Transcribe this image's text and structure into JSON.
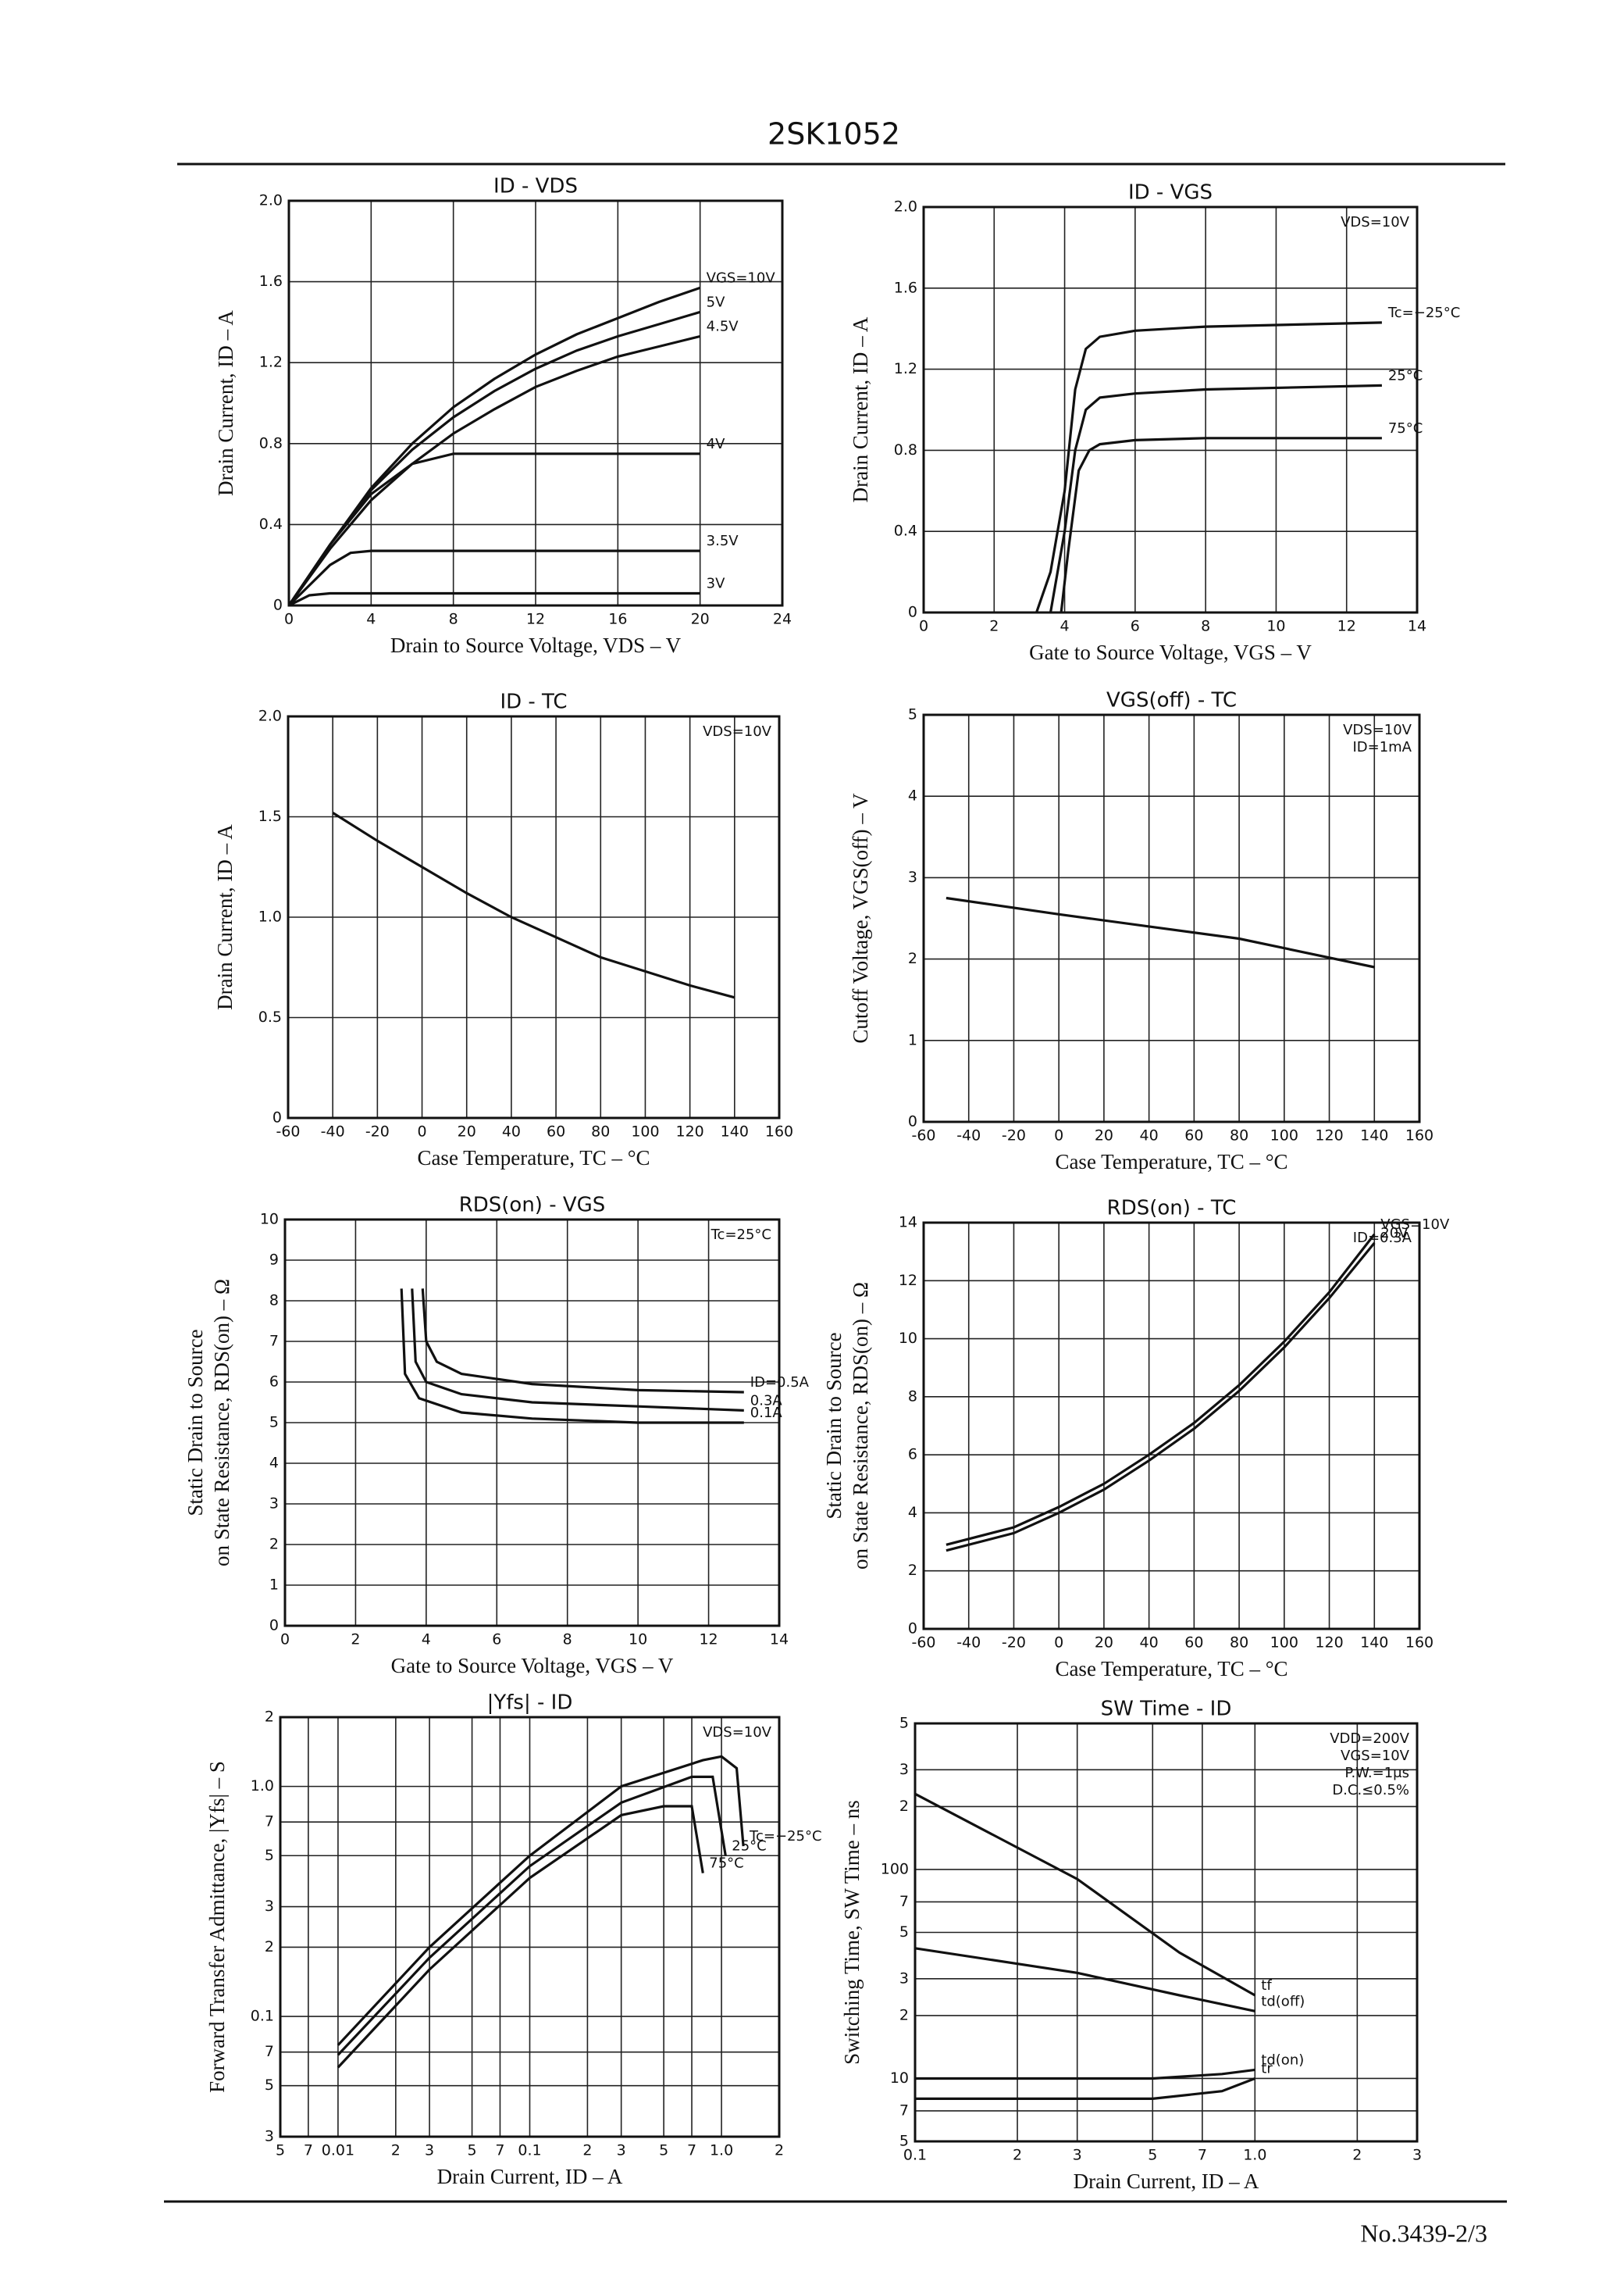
{
  "page": {
    "part_number": "2SK1052",
    "doc_number": "No.3439-2/3"
  },
  "chart_data": [
    {
      "type": "line",
      "title": "ID - VDS",
      "xlabel": "Drain to Source Voltage, VDS – V",
      "ylabel": "Drain Current, ID – A",
      "xlim": [
        0,
        24
      ],
      "xticks": [
        0,
        4,
        8,
        12,
        16,
        20,
        24
      ],
      "ylim": [
        0,
        2
      ],
      "yticks": [
        0,
        0.4,
        0.8,
        1.2,
        1.6,
        {
          "value": 2,
          "label": "2.0"
        }
      ],
      "grid": true,
      "series": [
        {
          "name": "VGS=10V",
          "color": "#111",
          "x": [
            0,
            2,
            4,
            6,
            8,
            10,
            12,
            14,
            16,
            18,
            20
          ],
          "values": [
            0,
            0.3,
            0.58,
            0.8,
            0.98,
            1.12,
            1.24,
            1.34,
            1.42,
            1.5,
            1.57
          ]
        },
        {
          "name": "5V",
          "color": "#111",
          "x": [
            0,
            2,
            4,
            6,
            8,
            10,
            12,
            14,
            16,
            18,
            20
          ],
          "values": [
            0,
            0.3,
            0.57,
            0.77,
            0.93,
            1.06,
            1.17,
            1.26,
            1.33,
            1.39,
            1.45
          ]
        },
        {
          "name": "4.5V",
          "color": "#111",
          "x": [
            0,
            2,
            4,
            6,
            8,
            10,
            12,
            14,
            16,
            18,
            20
          ],
          "values": [
            0,
            0.28,
            0.52,
            0.7,
            0.85,
            0.97,
            1.08,
            1.16,
            1.23,
            1.28,
            1.33
          ]
        },
        {
          "name": "4V",
          "color": "#111",
          "x": [
            0,
            2,
            4,
            6,
            8,
            20
          ],
          "values": [
            0,
            0.3,
            0.55,
            0.7,
            0.75,
            0.75
          ]
        },
        {
          "name": "3.5V",
          "color": "#111",
          "x": [
            0,
            2,
            3,
            4,
            20
          ],
          "values": [
            0,
            0.2,
            0.26,
            0.27,
            0.27
          ]
        },
        {
          "name": "3V",
          "color": "#111",
          "x": [
            0,
            1,
            2,
            20
          ],
          "values": [
            0,
            0.05,
            0.06,
            0.06
          ]
        }
      ]
    },
    {
      "type": "line",
      "title": "ID - VGS",
      "xlabel": "Gate to Source Voltage, VGS – V",
      "ylabel": "Drain Current, ID – A",
      "annotations": [
        "VDS=10V"
      ],
      "xlim": [
        0,
        14
      ],
      "xticks": [
        0,
        2,
        4,
        6,
        8,
        10,
        12,
        14
      ],
      "ylim": [
        0,
        2
      ],
      "yticks": [
        0,
        0.4,
        0.8,
        1.2,
        1.6,
        {
          "value": 2,
          "label": "2.0"
        }
      ],
      "grid": true,
      "series": [
        {
          "name": "Tc=−25°C",
          "color": "#111",
          "x": [
            3.2,
            3.6,
            4,
            4.3,
            4.6,
            5,
            6,
            8,
            13
          ],
          "values": [
            0,
            0.2,
            0.6,
            1.1,
            1.3,
            1.36,
            1.39,
            1.41,
            1.43
          ]
        },
        {
          "name": "25°C",
          "color": "#111",
          "x": [
            3.6,
            4,
            4.3,
            4.6,
            5,
            6,
            8,
            13
          ],
          "values": [
            0,
            0.4,
            0.8,
            1.0,
            1.06,
            1.08,
            1.1,
            1.12
          ]
        },
        {
          "name": "75°C",
          "color": "#111",
          "x": [
            3.9,
            4.1,
            4.4,
            4.7,
            5,
            6,
            8,
            13
          ],
          "values": [
            0,
            0.3,
            0.7,
            0.8,
            0.83,
            0.85,
            0.86,
            0.86
          ]
        }
      ]
    },
    {
      "type": "line",
      "title": "ID - TC",
      "xlabel": "Case Temperature, TC – °C",
      "ylabel": "Drain Current, ID – A",
      "annotations": [
        "VDS=10V"
      ],
      "xlim": [
        -60,
        160
      ],
      "xticks": [
        -60,
        -40,
        -20,
        0,
        20,
        40,
        60,
        80,
        100,
        120,
        140,
        160
      ],
      "ylim": [
        0,
        2
      ],
      "yticks": [
        0,
        0.5,
        {
          "value": 1,
          "label": "1.0"
        },
        1.5,
        {
          "value": 2,
          "label": "2.0"
        }
      ],
      "grid": true,
      "color": "#111",
      "x": [
        -40,
        -20,
        0,
        20,
        40,
        60,
        80,
        100,
        120,
        140
      ],
      "values": [
        1.52,
        1.38,
        1.25,
        1.12,
        1.0,
        0.9,
        0.8,
        0.73,
        0.66,
        0.6
      ]
    },
    {
      "type": "line",
      "title": "VGS(off) - TC",
      "xlabel": "Case Temperature, TC – °C",
      "ylabel": "Cutoff Voltage, VGS(off) – V",
      "annotations": [
        "VDS=10V",
        "ID=1mA"
      ],
      "xlim": [
        -60,
        160
      ],
      "xticks": [
        -60,
        -40,
        -20,
        0,
        20,
        40,
        60,
        80,
        100,
        120,
        140,
        160
      ],
      "ylim": [
        0,
        5
      ],
      "yticks": [
        0,
        1,
        2,
        3,
        4,
        5
      ],
      "grid": true,
      "color": "#111",
      "x": [
        -50,
        0,
        40,
        80,
        140
      ],
      "values": [
        2.75,
        2.55,
        2.4,
        2.25,
        1.9
      ]
    },
    {
      "type": "line",
      "title": "RDS(on) - VGS",
      "xlabel": "Gate to Source Voltage, VGS – V",
      "ylabel": [
        "Static Drain to Source",
        "on State Resistance, RDS(on) – Ω"
      ],
      "annotations": [
        "Tc=25°C"
      ],
      "xlim": [
        0,
        14
      ],
      "xticks": [
        0,
        2,
        4,
        6,
        8,
        10,
        12,
        14
      ],
      "ylim": [
        0,
        10
      ],
      "yticks": [
        0,
        1,
        2,
        3,
        4,
        5,
        6,
        7,
        8,
        9,
        10
      ],
      "grid": true,
      "series": [
        {
          "name": "ID=0.5A",
          "color": "#111",
          "x": [
            3.9,
            4.0,
            4.3,
            5,
            7,
            10,
            13
          ],
          "values": [
            8.3,
            7.0,
            6.5,
            6.2,
            5.95,
            5.8,
            5.75
          ]
        },
        {
          "name": "0.3A",
          "color": "#111",
          "x": [
            3.6,
            3.7,
            4,
            5,
            7,
            10,
            13
          ],
          "values": [
            8.3,
            6.5,
            6.0,
            5.7,
            5.5,
            5.4,
            5.3
          ]
        },
        {
          "name": "0.1A",
          "color": "#111",
          "x": [
            3.3,
            3.4,
            3.8,
            5,
            7,
            10,
            13
          ],
          "values": [
            8.3,
            6.2,
            5.6,
            5.25,
            5.1,
            5.0,
            5.0
          ]
        }
      ]
    },
    {
      "type": "line",
      "title": "RDS(on) - TC",
      "xlabel": "Case Temperature, TC – °C",
      "ylabel": [
        "Static Drain to Source",
        "on State Resistance, RDS(on) – Ω"
      ],
      "annotations": [
        "ID=0.3A"
      ],
      "xlim": [
        -60,
        160
      ],
      "xticks": [
        -60,
        -40,
        -20,
        0,
        20,
        40,
        60,
        80,
        100,
        120,
        140,
        160
      ],
      "ylim": [
        0,
        14
      ],
      "yticks": [
        0,
        2,
        4,
        6,
        8,
        10,
        12,
        14
      ],
      "grid": true,
      "series": [
        {
          "name": "VGS=10V",
          "color": "#111",
          "x": [
            -50,
            -20,
            0,
            20,
            40,
            60,
            80,
            100,
            120,
            140
          ],
          "values": [
            2.9,
            3.5,
            4.2,
            5.0,
            6.0,
            7.1,
            8.4,
            9.9,
            11.6,
            13.6
          ]
        },
        {
          "name": "20V",
          "color": "#111",
          "x": [
            -50,
            -20,
            0,
            20,
            40,
            60,
            80,
            100,
            120,
            140
          ],
          "values": [
            2.7,
            3.3,
            4.0,
            4.8,
            5.8,
            6.9,
            8.2,
            9.7,
            11.4,
            13.3
          ]
        }
      ]
    },
    {
      "type": "line",
      "title": "|Yfs| - ID",
      "xlabel": "Drain Current, ID – A",
      "ylabel": "Forward Transfer Admittance, |Yfs| – S",
      "annotations": [
        "VDS=10V"
      ],
      "xscale": "log",
      "yscale": "log",
      "xlim": [
        0.005,
        2
      ],
      "xticks": [
        {
          "value": 0.005,
          "label": "5"
        },
        {
          "value": 0.007,
          "label": "7"
        },
        0.01,
        {
          "value": 0.02,
          "label": "2"
        },
        {
          "value": 0.03,
          "label": "3"
        },
        {
          "value": 0.05,
          "label": "5"
        },
        {
          "value": 0.07,
          "label": "7"
        },
        0.1,
        {
          "value": 0.2,
          "label": "2"
        },
        {
          "value": 0.3,
          "label": "3"
        },
        {
          "value": 0.5,
          "label": "5"
        },
        {
          "value": 0.7,
          "label": "7"
        },
        {
          "value": 1,
          "label": "1.0"
        },
        2
      ],
      "ylim": [
        0.03,
        2
      ],
      "yticks": [
        {
          "value": 0.03,
          "label": "3"
        },
        {
          "value": 0.05,
          "label": "5"
        },
        {
          "value": 0.07,
          "label": "7"
        },
        0.1,
        {
          "value": 0.2,
          "label": "2"
        },
        {
          "value": 0.3,
          "label": "3"
        },
        {
          "value": 0.5,
          "label": "5"
        },
        {
          "value": 0.7,
          "label": "7"
        },
        {
          "value": 1,
          "label": "1.0"
        },
        2
      ],
      "grid": true,
      "series": [
        {
          "name": "Tc=−25°C",
          "color": "#111",
          "x": [
            0.01,
            0.03,
            0.1,
            0.3,
            0.8,
            1.0,
            1.2,
            1.3
          ],
          "values": [
            0.075,
            0.2,
            0.5,
            1.0,
            1.3,
            1.35,
            1.2,
            0.55
          ]
        },
        {
          "name": "25°C",
          "color": "#111",
          "x": [
            0.01,
            0.03,
            0.1,
            0.3,
            0.7,
            0.9,
            1.05
          ],
          "values": [
            0.068,
            0.18,
            0.45,
            0.85,
            1.1,
            1.1,
            0.5
          ]
        },
        {
          "name": "75°C",
          "color": "#111",
          "x": [
            0.01,
            0.03,
            0.1,
            0.3,
            0.5,
            0.7,
            0.8
          ],
          "values": [
            0.06,
            0.16,
            0.4,
            0.75,
            0.82,
            0.82,
            0.42
          ]
        }
      ]
    },
    {
      "type": "line",
      "title": "SW Time - ID",
      "xlabel": "Drain Current, ID – A",
      "ylabel": "Switching Time, SW Time – ns",
      "annotations": [
        "VDD=200V",
        "VGS=10V",
        "P.W.=1μs",
        "D.C.≤0.5%"
      ],
      "xscale": "log",
      "yscale": "log",
      "xlim": [
        0.1,
        3
      ],
      "xticks": [
        0.1,
        {
          "value": 0.2,
          "label": "2"
        },
        {
          "value": 0.3,
          "label": "3"
        },
        {
          "value": 0.5,
          "label": "5"
        },
        {
          "value": 0.7,
          "label": "7"
        },
        {
          "value": 1,
          "label": "1.0"
        },
        2,
        3
      ],
      "ylim": [
        5,
        500
      ],
      "yticks": [
        5,
        7,
        10,
        {
          "value": 20,
          "label": "2"
        },
        {
          "value": 30,
          "label": "3"
        },
        {
          "value": 50,
          "label": "5"
        },
        {
          "value": 70,
          "label": "7"
        },
        100,
        {
          "value": 200,
          "label": "2"
        },
        {
          "value": 300,
          "label": "3"
        },
        {
          "value": 500,
          "label": "5"
        }
      ],
      "grid": true,
      "series": [
        {
          "name": "tf",
          "color": "#111",
          "x": [
            0.1,
            0.3,
            0.6,
            1.0
          ],
          "values": [
            230,
            90,
            40,
            25
          ]
        },
        {
          "name": "td(off)",
          "color": "#111",
          "x": [
            0.1,
            0.3,
            0.6,
            1.0
          ],
          "values": [
            42,
            32,
            25,
            21
          ]
        },
        {
          "name": "td(on)",
          "color": "#111",
          "x": [
            0.1,
            0.5,
            0.8,
            1.0
          ],
          "values": [
            10,
            10,
            10.5,
            11
          ]
        },
        {
          "name": "tr",
          "color": "#111",
          "x": [
            0.1,
            0.5,
            0.8,
            1.0
          ],
          "values": [
            8,
            8,
            8.7,
            10
          ]
        }
      ]
    }
  ]
}
